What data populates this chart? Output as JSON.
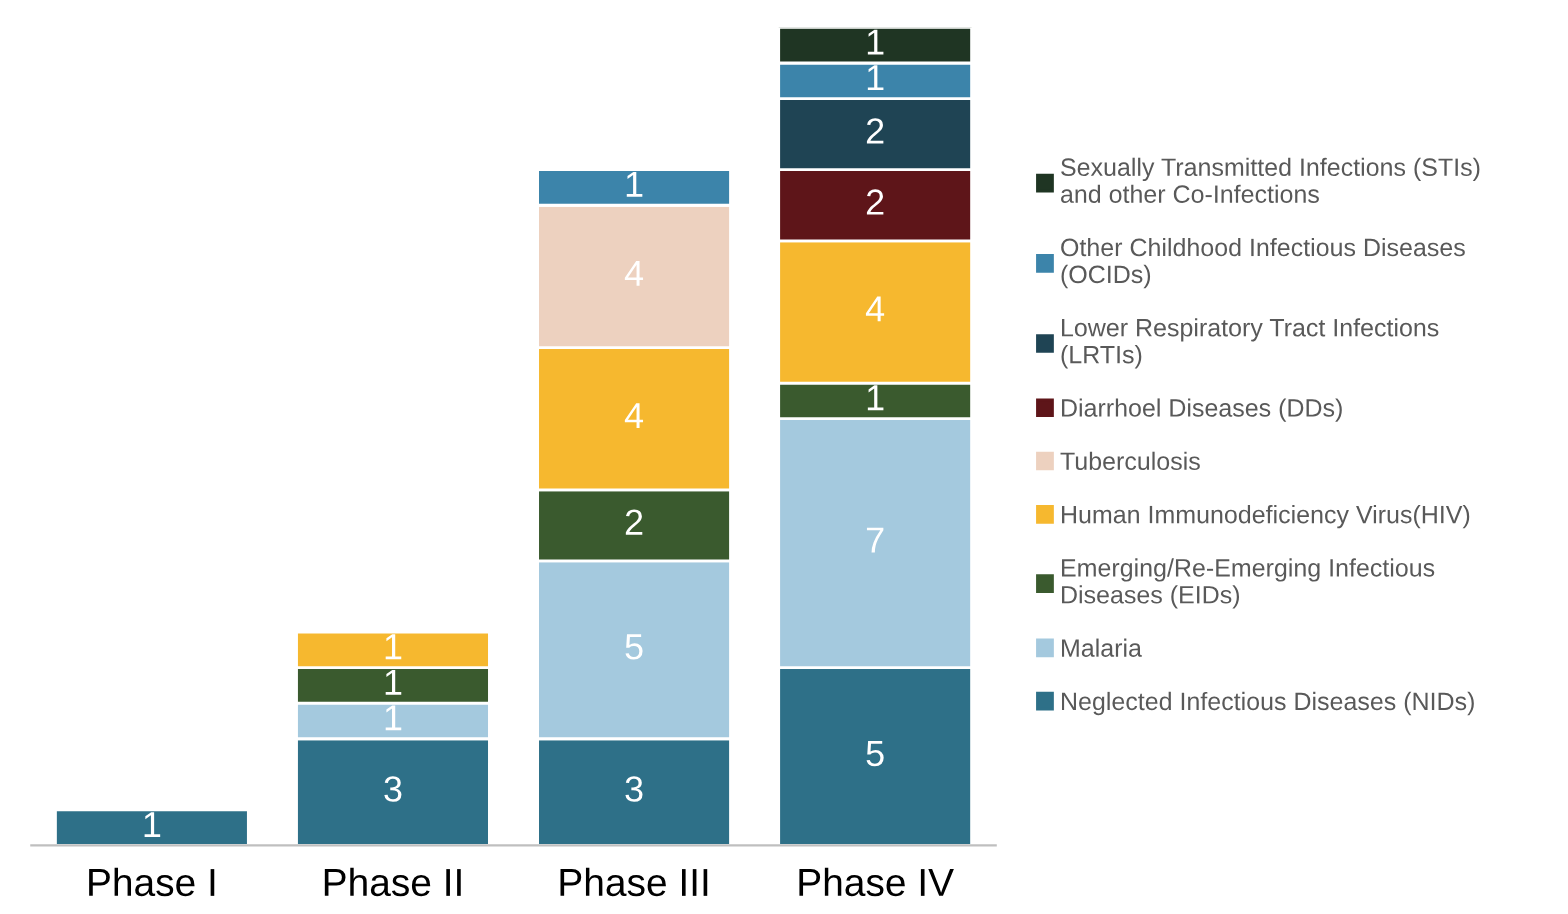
{
  "chart_data": {
    "type": "bar",
    "stacked": true,
    "data_labels": true,
    "legend": "right",
    "grid": false,
    "categories": [
      "Phase I",
      "Phase II",
      "Phase III",
      "Phase IV"
    ],
    "series": [
      {
        "name": "Neglected Infectious Diseases (NIDs)",
        "color": "#2e7088",
        "values": [
          1,
          3,
          3,
          5
        ]
      },
      {
        "name": "Malaria",
        "color": "#a4c9de",
        "values": [
          null,
          1,
          5,
          7
        ]
      },
      {
        "name": "Emerging/Re-Emerging Infectious Diseases (EIDs)",
        "color": "#3a5a2e",
        "values": [
          null,
          1,
          2,
          1
        ]
      },
      {
        "name": "Human Immunodeficiency Virus(HIV)",
        "color": "#f6b82f",
        "values": [
          null,
          1,
          4,
          4
        ]
      },
      {
        "name": "Tuberculosis",
        "color": "#edd1bf",
        "values": [
          null,
          null,
          4,
          null
        ]
      },
      {
        "name": "Diarrhoel Diseases (DDs)",
        "color": "#5e1519",
        "values": [
          null,
          null,
          null,
          2
        ]
      },
      {
        "name": "Lower Respiratory Tract Infections (LRTIs)",
        "color": "#1f4454",
        "values": [
          null,
          null,
          null,
          2
        ]
      },
      {
        "name": "Other Childhood Infectious Diseases (OCIDs)",
        "color": "#3c84aa",
        "values": [
          null,
          null,
          1,
          1
        ]
      },
      {
        "name": "Sexually Transmitted Infections (STIs) and other Co-Infections",
        "color": "#1f3523",
        "values": [
          null,
          null,
          null,
          1
        ]
      }
    ]
  }
}
